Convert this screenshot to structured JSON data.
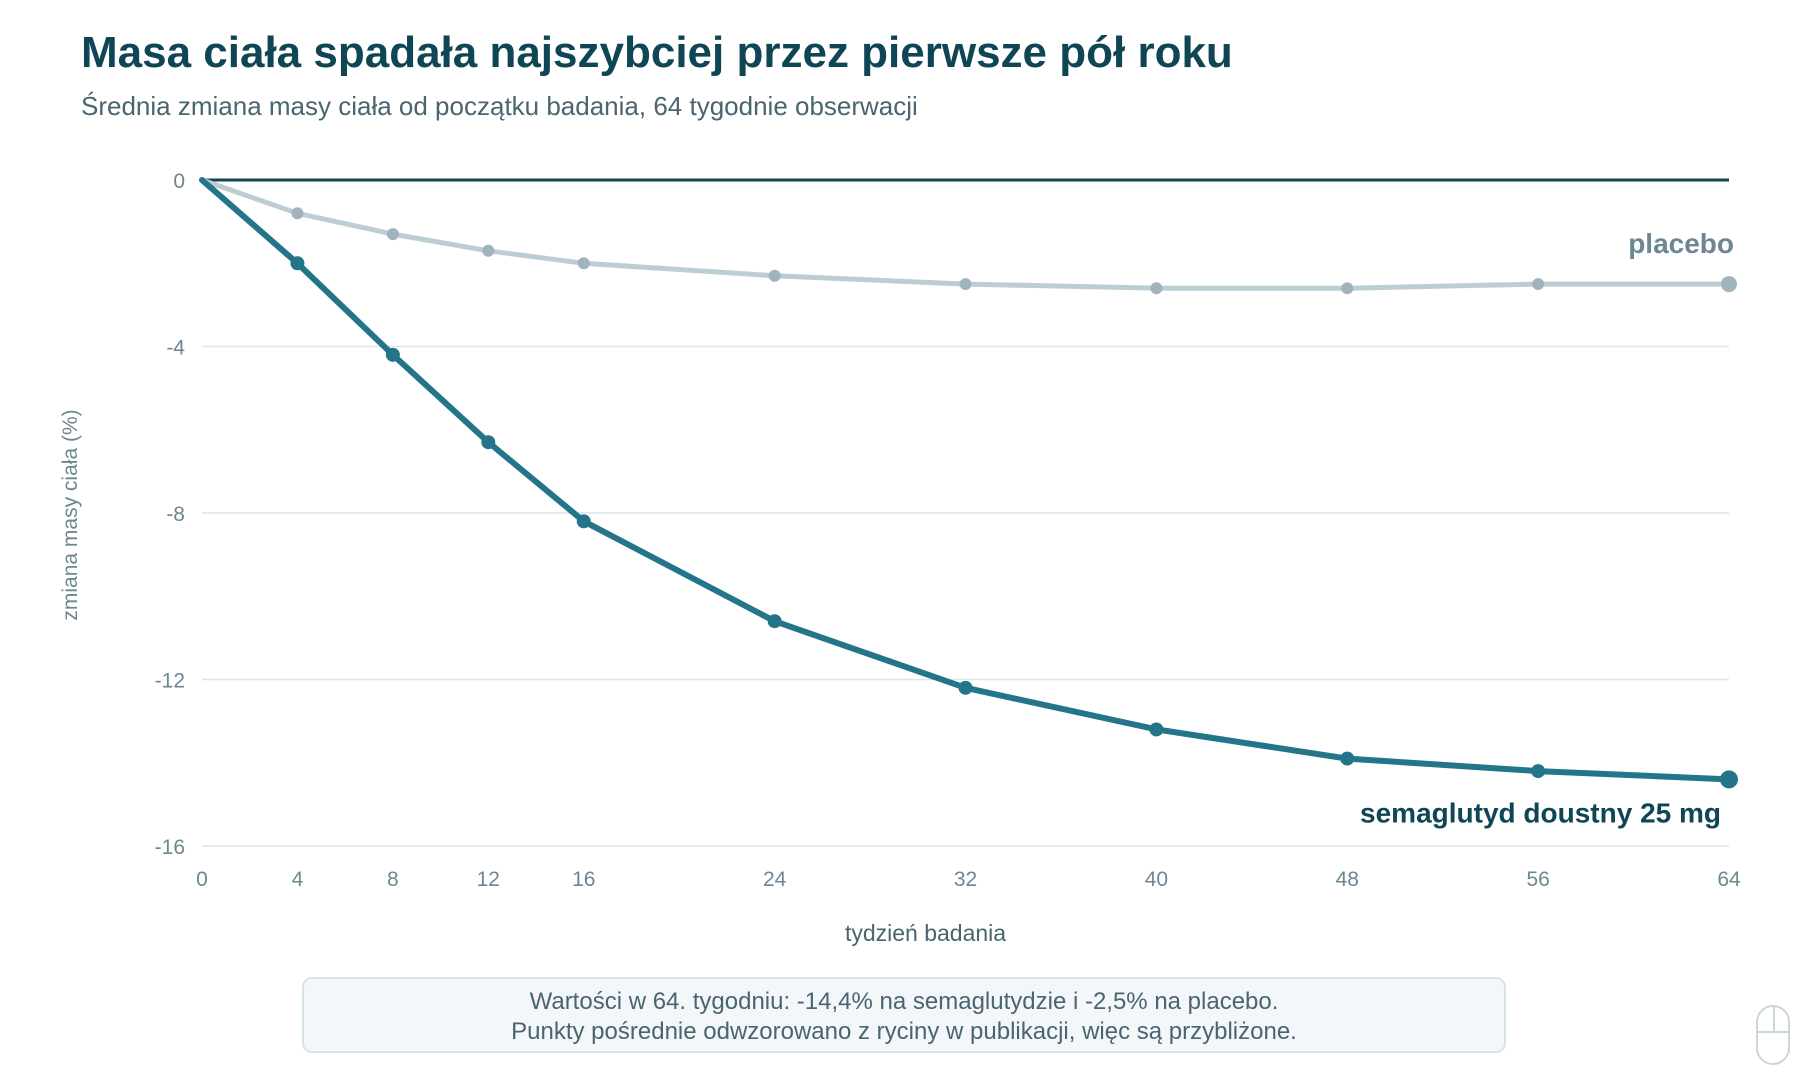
{
  "header": {
    "title": "Masa ciała spadała najszybciej przez pierwsze pół roku",
    "subtitle": "Średnia zmiana masy ciała od początku badania, 64 tygodnie obserwacji"
  },
  "chart_data": {
    "type": "line",
    "title": "Masa ciała spadała najszybciej przez pierwsze pół roku",
    "subtitle": "Średnia zmiana masy ciała od początku badania, 64 tygodnie obserwacji",
    "xlabel": "tydzień badania",
    "ylabel": "zmiana masy ciała (%)",
    "xlim": [
      0,
      64
    ],
    "ylim": [
      -16,
      0
    ],
    "xticks": [
      0,
      4,
      8,
      12,
      16,
      24,
      32,
      40,
      48,
      56,
      64
    ],
    "yticks": [
      0,
      -4,
      -8,
      -12,
      -16
    ],
    "grid": true,
    "x": [
      0,
      4,
      8,
      12,
      16,
      24,
      32,
      40,
      48,
      56,
      64
    ],
    "series": [
      {
        "name": "semaglutyd doustny 25 mg",
        "color": "#24748a",
        "values": [
          0,
          -2.0,
          -4.2,
          -6.3,
          -8.2,
          -10.6,
          -12.2,
          -13.2,
          -13.9,
          -14.2,
          -14.4
        ]
      },
      {
        "name": "placebo",
        "color": "#bccdd4",
        "values": [
          0,
          -0.8,
          -1.3,
          -1.7,
          -2.0,
          -2.3,
          -2.5,
          -2.6,
          -2.6,
          -2.5,
          -2.5
        ]
      }
    ],
    "label_colors": {
      "semaglutyd doustny 25 mg": "#0f4655",
      "placebo": "#6d8791"
    },
    "zero_line_color": "#0f4655",
    "grid_color": "#d9e6eb",
    "tick_color": "#6d8791"
  },
  "note": {
    "line1": "Wartości w 64. tygodniu: -14,4% na semaglutydzie i -2,5% na placebo.",
    "line2": "Punkty pośrednie odwzorowano z ryciny w publikacji, więc są przybliżone."
  },
  "icons": {
    "corner": "mouse-icon"
  }
}
